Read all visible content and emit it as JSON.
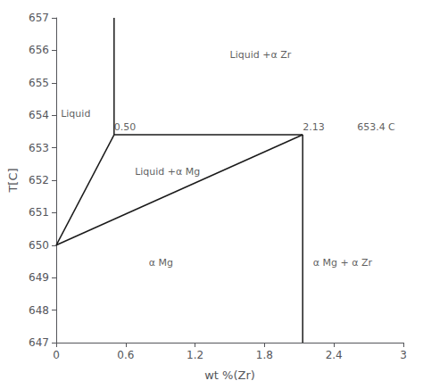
{
  "chart_data": {
    "type": "line",
    "xlabel": "wt %(Zr)",
    "ylabel": "T[C]",
    "xlim": [
      0,
      3
    ],
    "ylim": [
      647,
      657
    ],
    "xticks": [
      0,
      0.6,
      1.2,
      1.8,
      2.4,
      3
    ],
    "yticks": [
      647,
      648,
      649,
      650,
      651,
      652,
      653,
      654,
      655,
      656,
      657
    ],
    "grid": false,
    "color": "#1a1a1a",
    "series": [
      {
        "x": [
          0.5,
          0.5
        ],
        "values": [
          653.4,
          657
        ]
      },
      {
        "x": [
          0.5,
          2.13
        ],
        "values": [
          653.4,
          653.4
        ]
      },
      {
        "x": [
          0,
          0.5
        ],
        "values": [
          650.0,
          653.4
        ]
      },
      {
        "x": [
          0,
          2.13
        ],
        "values": [
          650.0,
          653.4
        ]
      },
      {
        "x": [
          2.13,
          2.13
        ],
        "values": [
          647,
          653.4
        ]
      }
    ],
    "annotations": [
      {
        "text": "0.50",
        "x": 0.5,
        "y": 653.48
      },
      {
        "text": "2.13",
        "x": 2.13,
        "y": 653.48
      },
      {
        "text": "653.4 C",
        "x": 2.6,
        "y": 653.48
      },
      {
        "text": "Liquid",
        "x": 0.04,
        "y": 653.9
      },
      {
        "text": "Liquid +α Zr",
        "x": 1.5,
        "y": 655.7
      },
      {
        "text": "Liquid +α Mg",
        "x": 0.68,
        "y": 652.1
      },
      {
        "text": "α Mg",
        "x": 0.8,
        "y": 649.3
      },
      {
        "text": "α Mg + α Zr",
        "x": 2.22,
        "y": 649.3
      }
    ]
  }
}
